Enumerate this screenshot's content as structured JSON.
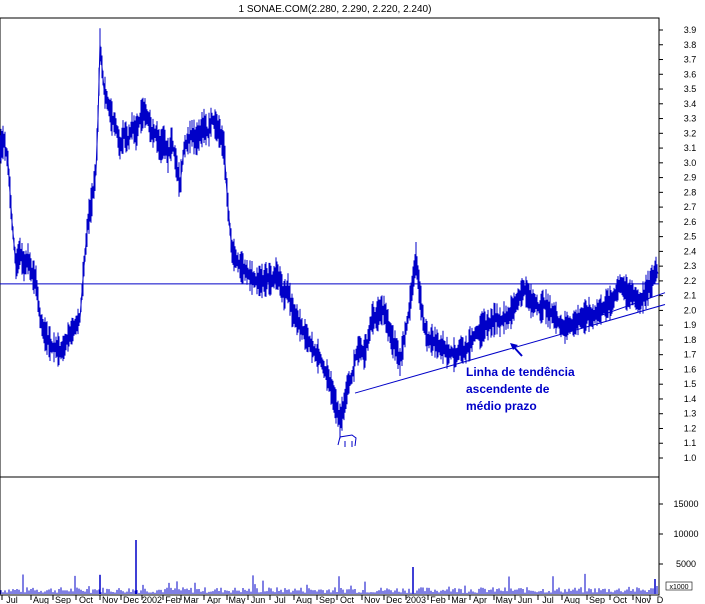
{
  "chart_data": {
    "type": "line",
    "title": "1 SONAE.COM(2.280, 2.290, 2.220, 2.240)",
    "colors": {
      "price": "#0000c8",
      "background": "#ffffff",
      "axis": "#000000"
    },
    "price_axis": {
      "ylim": [
        0.95,
        4.0
      ],
      "ticks": [
        "3.9",
        "3.8",
        "3.7",
        "3.6",
        "3.5",
        "3.4",
        "3.3",
        "3.2",
        "3.1",
        "3.0",
        "2.9",
        "2.8",
        "2.7",
        "2.6",
        "2.5",
        "2.4",
        "2.3",
        "2.2",
        "2.1",
        "2.0",
        "1.9",
        "1.8",
        "1.7",
        "1.6",
        "1.5",
        "1.4",
        "1.3",
        "1.2",
        "1.1",
        "1.0"
      ]
    },
    "volume_axis": {
      "ticks": [
        "15000",
        "10000",
        "5000"
      ],
      "unit_label": "x1000"
    },
    "x_axis": {
      "labels": [
        "Jul",
        "Aug",
        "Sep",
        "Oct",
        "Nov",
        "Dec",
        "2002",
        "Feb",
        "Mar",
        "Apr",
        "May",
        "Jun",
        "Jul",
        "Aug",
        "Sep",
        "Oct",
        "Nov",
        "Dec",
        "2003",
        "Feb",
        "Mar",
        "Apr",
        "May",
        "Jun",
        "Jul",
        "Aug",
        "Sep",
        "Oct",
        "Nov",
        "D"
      ]
    },
    "price_series": {
      "name": "",
      "points": [
        [
          0,
          3.1
        ],
        [
          4,
          3.15
        ],
        [
          8,
          3.0
        ],
        [
          12,
          2.6
        ],
        [
          16,
          2.3
        ],
        [
          20,
          2.4
        ],
        [
          24,
          2.3
        ],
        [
          28,
          2.35
        ],
        [
          32,
          2.25
        ],
        [
          36,
          2.2
        ],
        [
          40,
          1.95
        ],
        [
          44,
          1.85
        ],
        [
          48,
          1.8
        ],
        [
          52,
          1.75
        ],
        [
          56,
          1.75
        ],
        [
          60,
          1.72
        ],
        [
          64,
          1.75
        ],
        [
          68,
          1.82
        ],
        [
          72,
          1.86
        ],
        [
          76,
          1.9
        ],
        [
          80,
          1.95
        ],
        [
          84,
          2.3
        ],
        [
          88,
          2.6
        ],
        [
          92,
          2.75
        ],
        [
          96,
          2.95
        ],
        [
          98,
          3.3
        ],
        [
          100,
          3.8
        ],
        [
          104,
          3.5
        ],
        [
          108,
          3.4
        ],
        [
          112,
          3.3
        ],
        [
          116,
          3.25
        ],
        [
          120,
          3.1
        ],
        [
          124,
          3.2
        ],
        [
          128,
          3.15
        ],
        [
          132,
          3.25
        ],
        [
          136,
          3.2
        ],
        [
          140,
          3.3
        ],
        [
          144,
          3.35
        ],
        [
          148,
          3.3
        ],
        [
          152,
          3.2
        ],
        [
          156,
          3.2
        ],
        [
          160,
          3.1
        ],
        [
          164,
          3.15
        ],
        [
          168,
          3.05
        ],
        [
          172,
          3.15
        ],
        [
          176,
          3.0
        ],
        [
          180,
          2.85
        ],
        [
          184,
          3.1
        ],
        [
          188,
          3.15
        ],
        [
          192,
          3.2
        ],
        [
          196,
          3.15
        ],
        [
          200,
          3.2
        ],
        [
          204,
          3.25
        ],
        [
          208,
          3.2
        ],
        [
          212,
          3.3
        ],
        [
          216,
          3.25
        ],
        [
          220,
          3.2
        ],
        [
          224,
          3.1
        ],
        [
          228,
          2.7
        ],
        [
          232,
          2.4
        ],
        [
          236,
          2.35
        ],
        [
          240,
          2.3
        ],
        [
          244,
          2.28
        ],
        [
          248,
          2.25
        ],
        [
          252,
          2.22
        ],
        [
          256,
          2.2
        ],
        [
          260,
          2.2
        ],
        [
          264,
          2.2
        ],
        [
          268,
          2.22
        ],
        [
          272,
          2.2
        ],
        [
          276,
          2.25
        ],
        [
          280,
          2.2
        ],
        [
          284,
          2.1
        ],
        [
          288,
          2.15
        ],
        [
          292,
          2.0
        ],
        [
          296,
          1.95
        ],
        [
          300,
          1.9
        ],
        [
          304,
          1.85
        ],
        [
          308,
          1.8
        ],
        [
          312,
          1.75
        ],
        [
          316,
          1.7
        ],
        [
          320,
          1.68
        ],
        [
          324,
          1.6
        ],
        [
          328,
          1.55
        ],
        [
          332,
          1.45
        ],
        [
          336,
          1.35
        ],
        [
          340,
          1.25
        ],
        [
          344,
          1.35
        ],
        [
          348,
          1.5
        ],
        [
          352,
          1.55
        ],
        [
          356,
          1.7
        ],
        [
          360,
          1.75
        ],
        [
          364,
          1.7
        ],
        [
          368,
          1.8
        ],
        [
          372,
          1.95
        ],
        [
          376,
          1.95
        ],
        [
          380,
          2.0
        ],
        [
          384,
          2.0
        ],
        [
          388,
          1.9
        ],
        [
          392,
          1.8
        ],
        [
          396,
          1.75
        ],
        [
          400,
          1.65
        ],
        [
          404,
          1.8
        ],
        [
          408,
          1.95
        ],
        [
          412,
          2.15
        ],
        [
          416,
          2.35
        ],
        [
          420,
          2.1
        ],
        [
          424,
          1.9
        ],
        [
          428,
          1.8
        ],
        [
          432,
          1.8
        ],
        [
          436,
          1.78
        ],
        [
          440,
          1.75
        ],
        [
          444,
          1.75
        ],
        [
          448,
          1.7
        ],
        [
          452,
          1.72
        ],
        [
          456,
          1.68
        ],
        [
          460,
          1.75
        ],
        [
          464,
          1.72
        ],
        [
          468,
          1.75
        ],
        [
          472,
          1.8
        ],
        [
          476,
          1.85
        ],
        [
          480,
          1.85
        ],
        [
          484,
          1.9
        ],
        [
          488,
          1.9
        ],
        [
          492,
          1.92
        ],
        [
          496,
          1.95
        ],
        [
          500,
          1.92
        ],
        [
          504,
          1.95
        ],
        [
          508,
          1.95
        ],
        [
          512,
          2.0
        ],
        [
          516,
          2.05
        ],
        [
          520,
          2.1
        ],
        [
          524,
          2.15
        ],
        [
          528,
          2.1
        ],
        [
          532,
          2.05
        ],
        [
          536,
          2.05
        ],
        [
          540,
          2.0
        ],
        [
          544,
          2.05
        ],
        [
          548,
          2.0
        ],
        [
          552,
          1.98
        ],
        [
          556,
          1.95
        ],
        [
          560,
          1.9
        ],
        [
          564,
          1.88
        ],
        [
          568,
          1.9
        ],
        [
          572,
          1.9
        ],
        [
          576,
          1.92
        ],
        [
          580,
          1.95
        ],
        [
          584,
          1.95
        ],
        [
          588,
          1.98
        ],
        [
          592,
          1.95
        ],
        [
          596,
          1.98
        ],
        [
          600,
          2.0
        ],
        [
          604,
          2.02
        ],
        [
          608,
          2.05
        ],
        [
          612,
          2.05
        ],
        [
          616,
          2.12
        ],
        [
          620,
          2.18
        ],
        [
          624,
          2.15
        ],
        [
          628,
          2.1
        ],
        [
          632,
          2.12
        ],
        [
          636,
          2.08
        ],
        [
          640,
          2.05
        ],
        [
          644,
          2.1
        ],
        [
          648,
          2.15
        ],
        [
          652,
          2.2
        ],
        [
          656,
          2.28
        ],
        [
          658,
          2.25
        ]
      ]
    },
    "horizontal_line": {
      "y": 2.18
    },
    "trend_lines": [
      {
        "x1": 355,
        "y1": 1.44,
        "x2": 665,
        "y2": 2.04
      },
      {
        "x1": 565,
        "y1": 1.88,
        "x2": 665,
        "y2": 2.12
      }
    ],
    "volume_bars": {
      "spikes": [
        [
          100,
          3200
        ],
        [
          136,
          9000
        ],
        [
          413,
          4500
        ],
        [
          655,
          2500
        ]
      ],
      "baseline_level": 600
    },
    "annotation": {
      "lines": [
        "Linha de tendência",
        "ascendente de",
        "médio prazo"
      ]
    }
  }
}
